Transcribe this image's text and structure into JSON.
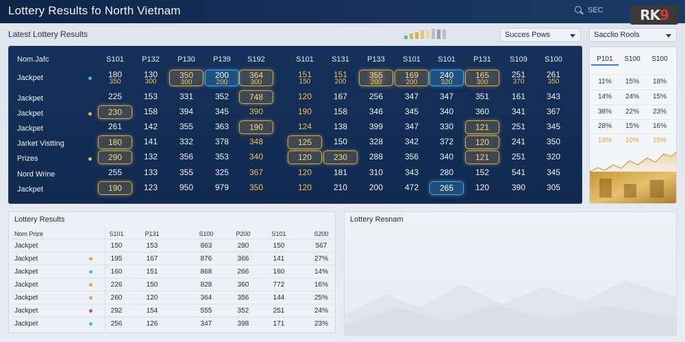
{
  "header": {
    "title": "Lottery Results fo North Vietnam",
    "search_label": "SEC",
    "logo_text": "RK9",
    "logo_accent": "9"
  },
  "toolbar": {
    "section_title": "Latest Lottery Results",
    "mini_bars": [
      {
        "level": 0.3,
        "color": "#4fb8e0"
      },
      {
        "level": 0.5,
        "color": "#d7b34f"
      },
      {
        "level": 0.65,
        "color": "#d7b34f"
      },
      {
        "level": 0.8,
        "color": "#e0c878"
      },
      {
        "level": 0.9,
        "color": "#e8d9a8"
      },
      {
        "level": 0.95,
        "color": "#b9bfc8"
      },
      {
        "level": 0.85,
        "color": "#9aa2ad"
      },
      {
        "level": 0.9,
        "color": "#b9bfc8"
      }
    ],
    "select1": "Succes Pows",
    "select2": "Sacclio Rools"
  },
  "main_table": {
    "columns": [
      "Nom.Jafc",
      "S101",
      "P132",
      "P130",
      "P139",
      "S192",
      "S101",
      "S131",
      "P133",
      "S101",
      "S101",
      "P131",
      "S109",
      "S100"
    ],
    "rows": [
      {
        "label": "Jackpet",
        "dot": "#3bb8e8",
        "cells": [
          {
            "v": "180",
            "sub": "350"
          },
          {
            "v": "130",
            "sub": "300"
          },
          {
            "v": "350",
            "sub": "300",
            "style": "gold-box"
          },
          {
            "v": "200",
            "sub": "200",
            "style": "blue-box"
          },
          {
            "v": "364",
            "sub": "300",
            "style": "gold-box"
          },
          {
            "v": "151",
            "sub": "150",
            "style": "gold-text"
          },
          {
            "v": "151",
            "sub": "200",
            "style": "gold-text"
          },
          {
            "v": "355",
            "sub": "200",
            "style": "gold-box"
          },
          {
            "v": "169",
            "sub": "200",
            "style": "gold-box"
          },
          {
            "v": "240",
            "sub": "320",
            "style": "blue-box"
          },
          {
            "v": "165",
            "sub": "300",
            "style": "gold-box"
          },
          {
            "v": "251",
            "sub": "370"
          },
          {
            "v": "261",
            "sub": "350"
          }
        ]
      },
      {
        "label": "Jackpet",
        "dot": "",
        "cells": [
          {
            "v": "225"
          },
          {
            "v": "153"
          },
          {
            "v": "331"
          },
          {
            "v": "352"
          },
          {
            "v": "748",
            "style": "gold-box"
          },
          {
            "v": "120",
            "style": "gold-text"
          },
          {
            "v": "167"
          },
          {
            "v": "256"
          },
          {
            "v": "347"
          },
          {
            "v": "347"
          },
          {
            "v": "351"
          },
          {
            "v": "161"
          },
          {
            "v": "343"
          }
        ]
      },
      {
        "label": "Jackpet",
        "dot": "#e8b94a",
        "cells": [
          {
            "v": "230",
            "style": "gold-box"
          },
          {
            "v": "158"
          },
          {
            "v": "394"
          },
          {
            "v": "345"
          },
          {
            "v": "390",
            "style": "gold-text"
          },
          {
            "v": "190",
            "style": "gold-text"
          },
          {
            "v": "158"
          },
          {
            "v": "346"
          },
          {
            "v": "345"
          },
          {
            "v": "340"
          },
          {
            "v": "360"
          },
          {
            "v": "341"
          },
          {
            "v": "367"
          }
        ]
      },
      {
        "label": "Jackpet",
        "dot": "",
        "cells": [
          {
            "v": "261"
          },
          {
            "v": "142"
          },
          {
            "v": "355"
          },
          {
            "v": "363"
          },
          {
            "v": "190",
            "style": "gold-box"
          },
          {
            "v": "124",
            "style": "gold-text"
          },
          {
            "v": "138"
          },
          {
            "v": "399"
          },
          {
            "v": "347"
          },
          {
            "v": "330"
          },
          {
            "v": "121",
            "style": "gold-box"
          },
          {
            "v": "251"
          },
          {
            "v": "345"
          }
        ]
      },
      {
        "label": "Jarket Vistting",
        "dot": "",
        "cells": [
          {
            "v": "180",
            "style": "gold-box"
          },
          {
            "v": "141"
          },
          {
            "v": "332"
          },
          {
            "v": "378"
          },
          {
            "v": "348",
            "style": "gold-text"
          },
          {
            "v": "125",
            "style": "gold-box"
          },
          {
            "v": "150"
          },
          {
            "v": "328"
          },
          {
            "v": "342"
          },
          {
            "v": "372"
          },
          {
            "v": "120",
            "style": "gold-box"
          },
          {
            "v": "241"
          },
          {
            "v": "350"
          }
        ]
      },
      {
        "label": "Prizes",
        "dot": "#e8b94a",
        "cells": [
          {
            "v": "290",
            "style": "gold-box"
          },
          {
            "v": "132"
          },
          {
            "v": "356"
          },
          {
            "v": "353"
          },
          {
            "v": "340",
            "style": "gold-text"
          },
          {
            "v": "120",
            "style": "gold-box"
          },
          {
            "v": "230",
            "style": "gold-box"
          },
          {
            "v": "288"
          },
          {
            "v": "356"
          },
          {
            "v": "340"
          },
          {
            "v": "121",
            "style": "gold-box"
          },
          {
            "v": "251"
          },
          {
            "v": "320"
          }
        ]
      },
      {
        "label": "Nord Wrine",
        "dot": "",
        "cells": [
          {
            "v": "255"
          },
          {
            "v": "133"
          },
          {
            "v": "355"
          },
          {
            "v": "325"
          },
          {
            "v": "367",
            "style": "gold-text"
          },
          {
            "v": "120",
            "style": "gold-text"
          },
          {
            "v": "181"
          },
          {
            "v": "310"
          },
          {
            "v": "343"
          },
          {
            "v": "280"
          },
          {
            "v": "152"
          },
          {
            "v": "541"
          },
          {
            "v": "345"
          }
        ]
      },
      {
        "label": "Jackpet",
        "dot": "",
        "cells": [
          {
            "v": "190",
            "style": "gold-box"
          },
          {
            "v": "123"
          },
          {
            "v": "950"
          },
          {
            "v": "979"
          },
          {
            "v": "350",
            "style": "gold-text"
          },
          {
            "v": "120",
            "style": "gold-text"
          },
          {
            "v": "210"
          },
          {
            "v": "200"
          },
          {
            "v": "472"
          },
          {
            "v": "265",
            "style": "blue-box"
          },
          {
            "v": "120"
          },
          {
            "v": "390"
          },
          {
            "v": "305"
          }
        ]
      }
    ]
  },
  "side_panel": {
    "columns": [
      "P101",
      "S100",
      "S100"
    ],
    "rows": [
      [
        "11%",
        "15%",
        "18%"
      ],
      [
        "14%",
        "24%",
        "15%"
      ],
      [
        "38%",
        "22%",
        "23%"
      ],
      [
        "28%",
        "15%",
        "16%"
      ],
      [
        "19%",
        "10%",
        "15%"
      ]
    ],
    "highlight_row": 4
  },
  "lower_table": {
    "title": "Lottery Results",
    "columns": [
      "Nom Prize",
      "S101",
      "P131",
      "S100",
      "P200",
      "S101",
      "S200"
    ],
    "rows": [
      {
        "label": "Jackpet",
        "dot": "",
        "cells": [
          "150",
          "153",
          "863",
          "280",
          "150",
          "567"
        ]
      },
      {
        "label": "Jackpet",
        "dot": "#e0a840",
        "cells": [
          "195",
          "167",
          "876",
          "366",
          "141",
          "27%"
        ]
      },
      {
        "label": "Jackpet",
        "dot": "#3bb8e8",
        "cells": [
          "160",
          "151",
          "868",
          "266",
          "160",
          "14%"
        ]
      },
      {
        "label": "Jackpet",
        "dot": "#e0a840",
        "cells": [
          "226",
          "150",
          "828",
          "360",
          "772",
          "16%"
        ]
      },
      {
        "label": "Jackpet",
        "dot": "#e0a840",
        "cells": [
          "260",
          "120",
          "364",
          "356",
          "144",
          "25%"
        ]
      },
      {
        "label": "Jackpet",
        "dot": "#c0507a",
        "cells": [
          "292",
          "154",
          "555",
          "352",
          "251",
          "24%"
        ]
      },
      {
        "label": "Jackpet",
        "dot": "#3bb8e8",
        "cells": [
          "256",
          "126",
          "347",
          "398",
          "171",
          "23%"
        ]
      }
    ]
  },
  "lower_right": {
    "title": "Lottery Resnam"
  }
}
